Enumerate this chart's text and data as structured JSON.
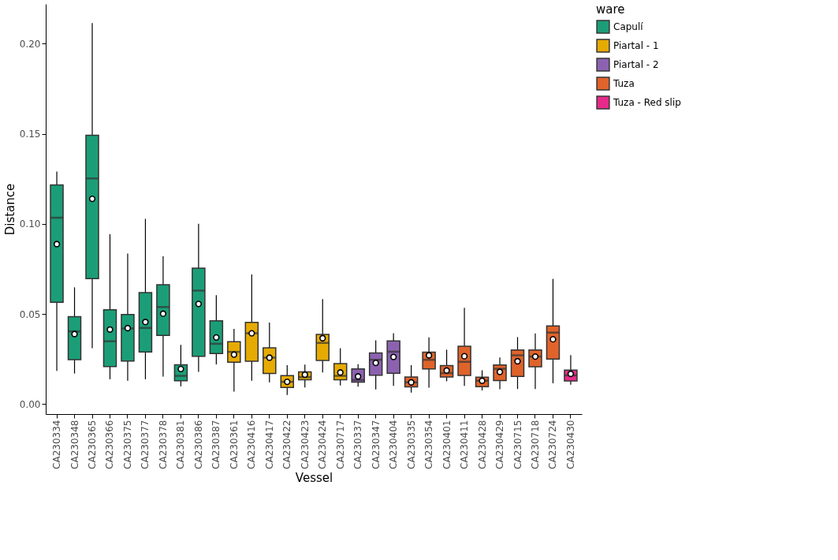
{
  "chart_data": {
    "type": "box",
    "xlabel": "Vessel",
    "ylabel": "Distance",
    "legend_title": "ware",
    "legend": "right",
    "grid": false,
    "marker": "circle",
    "categories": [
      "CA230334",
      "CA230348",
      "CA230365",
      "CA230366",
      "CA230375",
      "CA230377",
      "CA230378",
      "CA230381",
      "CA230386",
      "CA230387",
      "CA230361",
      "CA230416",
      "CA230417",
      "CA230422",
      "CA230423",
      "CA230424",
      "CA230717",
      "CA230337",
      "CA230347",
      "CA230404",
      "CA230335",
      "CA230354",
      "CA230401",
      "CA230411",
      "CA230428",
      "CA230429",
      "CA230715",
      "CA230718",
      "CA230724",
      "CA230430"
    ],
    "ylim": [
      -0.0055,
      0.222
    ],
    "yticks": [
      {
        "value": 0,
        "label": "0.00"
      },
      {
        "value": 0.05,
        "label": "0.05"
      },
      {
        "value": 0.1,
        "label": "0.10"
      },
      {
        "value": 0.15,
        "label": "0.15"
      },
      {
        "value": 0.2,
        "label": "0.20"
      }
    ],
    "series": [
      {
        "name": "Capulí",
        "color": "#1b9e77",
        "x": [
          "CA230334",
          "CA230348",
          "CA230365",
          "CA230366",
          "CA230375",
          "CA230377",
          "CA230378",
          "CA230381",
          "CA230386",
          "CA230387"
        ],
        "boxes": [
          {
            "low": 0.0185,
            "q1": 0.0565,
            "median": 0.1034,
            "q3": 0.1216,
            "high": 0.129,
            "mean": 0.0888
          },
          {
            "low": 0.017,
            "q1": 0.0247,
            "median": 0.0404,
            "q3": 0.0485,
            "high": 0.0648,
            "mean": 0.0389
          },
          {
            "low": 0.031,
            "q1": 0.0696,
            "median": 0.1252,
            "q3": 0.1492,
            "high": 0.2114,
            "mean": 0.1139
          },
          {
            "low": 0.0138,
            "q1": 0.0209,
            "median": 0.0349,
            "q3": 0.0524,
            "high": 0.0943,
            "mean": 0.0414
          },
          {
            "low": 0.013,
            "q1": 0.0239,
            "median": 0.042,
            "q3": 0.0497,
            "high": 0.0835,
            "mean": 0.0422
          },
          {
            "low": 0.0138,
            "q1": 0.029,
            "median": 0.0423,
            "q3": 0.0619,
            "high": 0.1028,
            "mean": 0.0456
          },
          {
            "low": 0.0153,
            "q1": 0.0381,
            "median": 0.0539,
            "q3": 0.0663,
            "high": 0.082,
            "mean": 0.0502
          },
          {
            "low": 0.0099,
            "q1": 0.013,
            "median": 0.0157,
            "q3": 0.0218,
            "high": 0.0329,
            "mean": 0.0195
          },
          {
            "low": 0.0179,
            "q1": 0.0266,
            "median": 0.063,
            "q3": 0.0754,
            "high": 0.1,
            "mean": 0.0556
          },
          {
            "low": 0.0221,
            "q1": 0.0281,
            "median": 0.0335,
            "q3": 0.0462,
            "high": 0.0604,
            "mean": 0.037
          }
        ]
      },
      {
        "name": "Piartal - 1",
        "color": "#e6ab02",
        "x": [
          "CA230361",
          "CA230416",
          "CA230417",
          "CA230422",
          "CA230423",
          "CA230424",
          "CA230717"
        ],
        "boxes": [
          {
            "low": 0.007,
            "q1": 0.0233,
            "median": 0.029,
            "q3": 0.0346,
            "high": 0.0417,
            "mean": 0.0275
          },
          {
            "low": 0.013,
            "q1": 0.0238,
            "median": 0.0393,
            "q3": 0.0454,
            "high": 0.0719,
            "mean": 0.0393
          },
          {
            "low": 0.0121,
            "q1": 0.017,
            "median": 0.0258,
            "q3": 0.0312,
            "high": 0.0452,
            "mean": 0.0258
          },
          {
            "low": 0.0051,
            "q1": 0.0093,
            "median": 0.0124,
            "q3": 0.0158,
            "high": 0.0216,
            "mean": 0.0124
          },
          {
            "low": 0.0093,
            "q1": 0.0135,
            "median": 0.015,
            "q3": 0.0179,
            "high": 0.022,
            "mean": 0.0164
          },
          {
            "low": 0.0176,
            "q1": 0.0243,
            "median": 0.034,
            "q3": 0.0387,
            "high": 0.0583,
            "mean": 0.0366
          },
          {
            "low": 0.0104,
            "q1": 0.0135,
            "median": 0.0157,
            "q3": 0.0225,
            "high": 0.031,
            "mean": 0.0176
          }
        ]
      },
      {
        "name": "Piartal - 2",
        "color": "#8c62b0",
        "x": [
          "CA230337",
          "CA230347",
          "CA230404"
        ],
        "boxes": [
          {
            "low": 0.0097,
            "q1": 0.0122,
            "median": 0.0134,
            "q3": 0.0196,
            "high": 0.0222,
            "mean": 0.0154
          },
          {
            "low": 0.0082,
            "q1": 0.0161,
            "median": 0.0246,
            "q3": 0.0284,
            "high": 0.0354,
            "mean": 0.0229
          },
          {
            "low": 0.0101,
            "q1": 0.0171,
            "median": 0.0291,
            "q3": 0.0351,
            "high": 0.0393,
            "mean": 0.0262
          }
        ]
      },
      {
        "name": "Tuza",
        "color": "#e0632a",
        "x": [
          "CA230335",
          "CA230354",
          "CA230401",
          "CA230411",
          "CA230428",
          "CA230429",
          "CA230715",
          "CA230718",
          "CA230724"
        ],
        "boxes": [
          {
            "low": 0.0064,
            "q1": 0.0096,
            "median": 0.0121,
            "q3": 0.0151,
            "high": 0.0216,
            "mean": 0.0121
          },
          {
            "low": 0.0092,
            "q1": 0.0196,
            "median": 0.0246,
            "q3": 0.0288,
            "high": 0.037,
            "mean": 0.0271
          },
          {
            "low": 0.0127,
            "q1": 0.0151,
            "median": 0.0172,
            "q3": 0.0214,
            "high": 0.0302,
            "mean": 0.0187
          },
          {
            "low": 0.0101,
            "q1": 0.0159,
            "median": 0.0235,
            "q3": 0.0321,
            "high": 0.0535,
            "mean": 0.0266
          },
          {
            "low": 0.0076,
            "q1": 0.0097,
            "median": 0.013,
            "q3": 0.0149,
            "high": 0.0188,
            "mean": 0.013
          },
          {
            "low": 0.0083,
            "q1": 0.0131,
            "median": 0.0196,
            "q3": 0.0217,
            "high": 0.0259,
            "mean": 0.0179
          },
          {
            "low": 0.0084,
            "q1": 0.0154,
            "median": 0.0271,
            "q3": 0.03,
            "high": 0.0372,
            "mean": 0.0238
          },
          {
            "low": 0.0084,
            "q1": 0.0208,
            "median": 0.0264,
            "q3": 0.0301,
            "high": 0.0392,
            "mean": 0.0264
          },
          {
            "low": 0.0116,
            "q1": 0.025,
            "median": 0.0397,
            "q3": 0.0434,
            "high": 0.0695,
            "mean": 0.036
          }
        ]
      },
      {
        "name": "Tuza - Red slip",
        "color": "#e7298a",
        "x": [
          "CA230430"
        ],
        "boxes": [
          {
            "low": 0.0108,
            "q1": 0.0129,
            "median": 0.016,
            "q3": 0.0189,
            "high": 0.0272,
            "mean": 0.0168
          }
        ]
      }
    ]
  }
}
